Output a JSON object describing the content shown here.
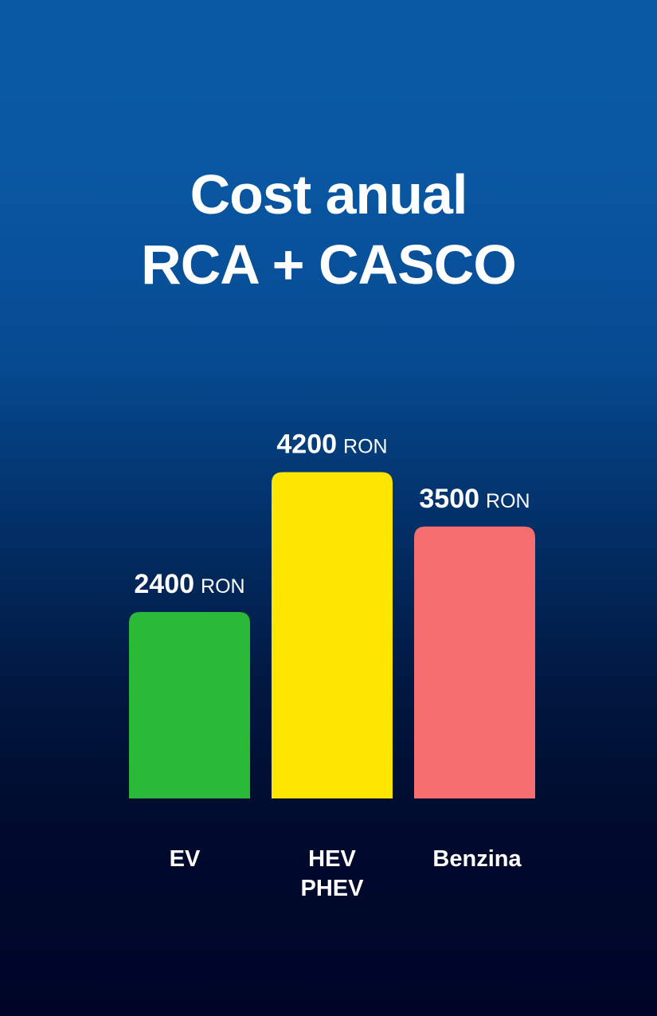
{
  "title": [
    "Cost anual",
    "RCA + CASCO"
  ],
  "chart_data": {
    "type": "bar",
    "title": "Cost anual RCA + CASCO",
    "unit": "RON",
    "categories": [
      [
        "EV"
      ],
      [
        "HEV",
        "PHEV"
      ],
      [
        "Benzina"
      ]
    ],
    "values": [
      2400,
      4200,
      3500
    ],
    "colors": [
      "#2bba38",
      "#ffe600",
      "#f76e70"
    ],
    "xlabel": "",
    "ylabel": "",
    "grid": false,
    "legend": "none"
  }
}
